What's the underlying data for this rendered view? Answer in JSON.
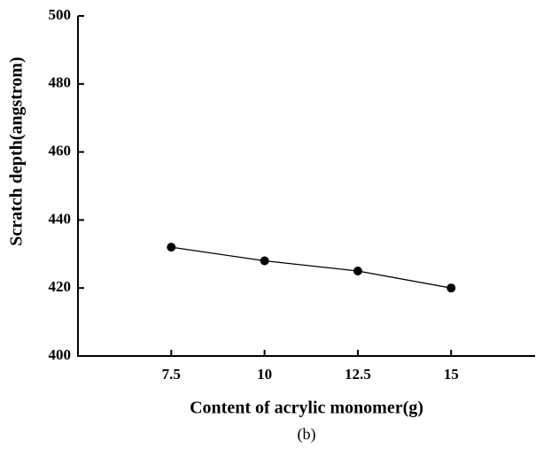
{
  "chart_data": {
    "type": "line",
    "x_label": "Content of acrylic monomer(g)",
    "y_label": "Scratch depth(angstrom)",
    "caption": "(b)",
    "x": [
      7.5,
      10,
      12.5,
      15
    ],
    "series": [
      {
        "name": null,
        "color": "#000000",
        "values": [
          432,
          428,
          425,
          420
        ]
      }
    ],
    "xlim": [
      5,
      17.25
    ],
    "xticks": [
      7.5,
      10,
      12.5,
      15
    ],
    "ylim": [
      400,
      500
    ],
    "yticks": [
      400,
      420,
      440,
      460,
      480,
      500
    ]
  }
}
